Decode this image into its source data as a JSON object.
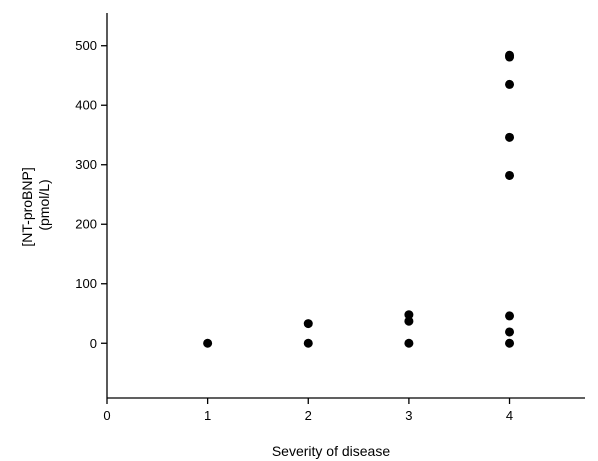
{
  "chart_data": {
    "type": "scatter",
    "title": "",
    "xlabel": "Severity of disease",
    "ylabel_lines": [
      "[NT-proBNP]",
      "(pmol/L)"
    ],
    "xlim": [
      0,
      4.75
    ],
    "ylim": [
      -92,
      555
    ],
    "x_ticks": [
      0,
      1,
      2,
      3,
      4
    ],
    "y_ticks": [
      0,
      100,
      200,
      300,
      400,
      500
    ],
    "grid": false,
    "legend": "none",
    "marker_color": "#000000",
    "points": [
      {
        "x": 1,
        "y": 0
      },
      {
        "x": 2,
        "y": 0
      },
      {
        "x": 2,
        "y": 33
      },
      {
        "x": 3,
        "y": 0
      },
      {
        "x": 3,
        "y": 37
      },
      {
        "x": 3,
        "y": 48
      },
      {
        "x": 4,
        "y": 0
      },
      {
        "x": 4,
        "y": 19
      },
      {
        "x": 4,
        "y": 46
      },
      {
        "x": 4,
        "y": 282
      },
      {
        "x": 4,
        "y": 346
      },
      {
        "x": 4,
        "y": 435
      },
      {
        "x": 4,
        "y": 481
      },
      {
        "x": 4,
        "y": 484
      }
    ]
  }
}
